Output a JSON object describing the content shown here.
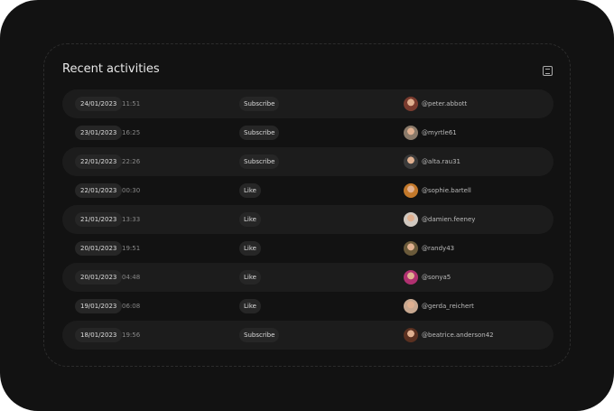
{
  "header": {
    "title": "Recent activities"
  },
  "table": {
    "rows": [
      {
        "date": "24/01/2023",
        "time": "11:51",
        "action": "Subscribe",
        "user": "@peter.abbott"
      },
      {
        "date": "23/01/2023",
        "time": "16:25",
        "action": "Subscribe",
        "user": "@myrtle61"
      },
      {
        "date": "22/01/2023",
        "time": "22:26",
        "action": "Subscribe",
        "user": "@alta.rau31"
      },
      {
        "date": "22/01/2023",
        "time": "00:30",
        "action": "Like",
        "user": "@sophie.bartell"
      },
      {
        "date": "21/01/2023",
        "time": "13:33",
        "action": "Like",
        "user": "@damien.feeney"
      },
      {
        "date": "20/01/2023",
        "time": "19:51",
        "action": "Like",
        "user": "@randy43"
      },
      {
        "date": "20/01/2023",
        "time": "04:48",
        "action": "Like",
        "user": "@sonya5"
      },
      {
        "date": "19/01/2023",
        "time": "06:08",
        "action": "Like",
        "user": "@gerda_reichert"
      },
      {
        "date": "18/01/2023",
        "time": "19:56",
        "action": "Subscribe",
        "user": "@beatrice.anderson42"
      }
    ]
  }
}
